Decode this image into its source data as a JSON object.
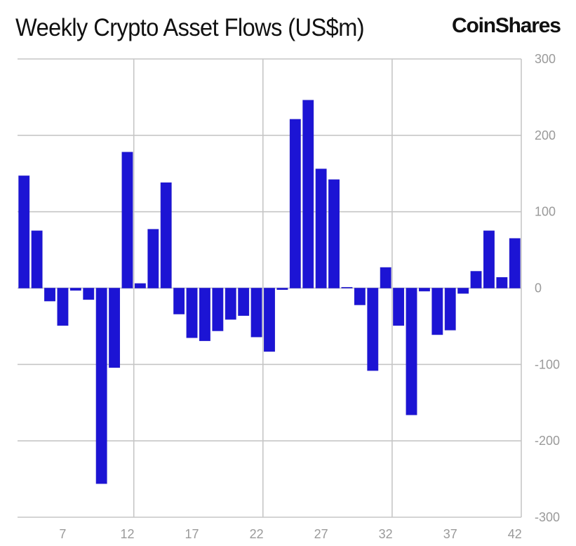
{
  "header": {
    "title": "Weekly Crypto Asset Flows (US$m)",
    "brand_logo": "CoinShares"
  },
  "colors": {
    "bar": "#1c14d4",
    "grid": "#c6c6c6",
    "tick_text": "#9a9a9a",
    "title_text": "#111111"
  },
  "chart_data": {
    "type": "bar",
    "title": "Weekly Crypto Asset Flows (US$m)",
    "xlabel": "",
    "ylabel": "",
    "x": [
      4,
      5,
      6,
      7,
      8,
      9,
      10,
      11,
      12,
      13,
      14,
      15,
      16,
      17,
      18,
      19,
      20,
      21,
      22,
      23,
      24,
      25,
      26,
      27,
      28,
      29,
      30,
      31,
      32,
      33,
      34,
      35,
      36,
      37,
      38,
      39,
      40,
      41,
      42
    ],
    "values": [
      147,
      75,
      -17,
      -49,
      -3,
      -15,
      -256,
      -104,
      178,
      6,
      77,
      138,
      -34,
      -65,
      -69,
      -56,
      -41,
      -36,
      -64,
      -83,
      -2,
      221,
      246,
      156,
      142,
      1,
      -22,
      -108,
      27,
      -49,
      -166,
      -4,
      -61,
      -55,
      -7,
      22,
      75,
      14,
      65
    ],
    "ylim": [
      -300,
      300
    ],
    "yticks": [
      "300",
      "200",
      "100",
      "0",
      "-100",
      "-200",
      "-300"
    ],
    "ytick_values": [
      300,
      200,
      100,
      0,
      -100,
      -200,
      -300
    ],
    "xticks": [
      "7",
      "12",
      "17",
      "22",
      "27",
      "32",
      "37",
      "42"
    ],
    "xtick_values": [
      7,
      12,
      17,
      22,
      27,
      32,
      37,
      42
    ],
    "x_gridlines_after": [
      12,
      22,
      32,
      42
    ],
    "grid": true,
    "y_axis_side": "right",
    "legend": "none"
  }
}
